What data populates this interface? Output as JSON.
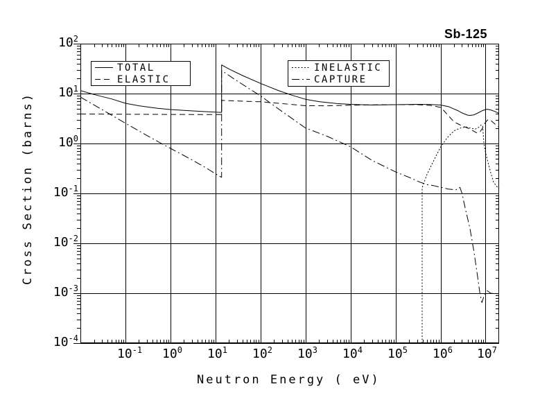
{
  "window": {
    "background": "#ffffff",
    "foreground": "#000000"
  },
  "chart_data": {
    "type": "line",
    "title": "Sb-125",
    "xlabel": "Neutron Energy ( eV)",
    "ylabel": "Cross Section (barns)",
    "x_scale": "log",
    "y_scale": "log",
    "x_range": [
      0.01,
      20000000
    ],
    "y_range": [
      0.0001,
      100
    ],
    "x_tick_exponents": [
      -1,
      0,
      1,
      2,
      3,
      4,
      5,
      6,
      7
    ],
    "y_tick_exponents": [
      2,
      1,
      0,
      -1,
      -2,
      -3,
      -4
    ],
    "grid": true,
    "legend_position": "top-inside",
    "legend_boxes": [
      [
        "total",
        "elastic"
      ],
      [
        "inelastic",
        "capture"
      ]
    ],
    "series": [
      {
        "name": "total",
        "label": "TOTAL",
        "line_style": "solid",
        "points": [
          [
            0.01,
            11.5
          ],
          [
            0.02,
            9.6
          ],
          [
            0.05,
            7.8
          ],
          [
            0.1,
            6.4
          ],
          [
            0.2,
            5.7
          ],
          [
            0.5,
            5.1
          ],
          [
            1,
            4.8
          ],
          [
            2,
            4.6
          ],
          [
            5,
            4.4
          ],
          [
            10,
            4.25
          ],
          [
            13.7,
            4.2
          ],
          [
            13.7,
            37.5
          ],
          [
            20,
            31
          ],
          [
            40,
            23
          ],
          [
            100,
            16
          ],
          [
            250,
            11.5
          ],
          [
            500,
            9.3
          ],
          [
            1000,
            7.7
          ],
          [
            2000,
            6.9
          ],
          [
            5000,
            6.3
          ],
          [
            10000,
            6.1
          ],
          [
            30000,
            5.9
          ],
          [
            100000,
            6.0
          ],
          [
            300000,
            6.1
          ],
          [
            600000,
            6.05
          ],
          [
            1000000,
            5.9
          ],
          [
            1500000,
            5.5
          ],
          [
            2000000,
            4.9
          ],
          [
            2500000,
            4.5
          ],
          [
            3000000,
            4.1
          ],
          [
            4000000,
            3.7
          ],
          [
            4500000,
            3.65
          ],
          [
            5500000,
            3.75
          ],
          [
            7000000,
            4.15
          ],
          [
            8500000,
            4.55
          ],
          [
            10000000,
            4.8
          ],
          [
            11000000,
            4.85
          ],
          [
            13000000,
            4.7
          ],
          [
            16000000,
            4.4
          ],
          [
            20000000,
            4.0
          ]
        ]
      },
      {
        "name": "elastic",
        "label": "ELASTIC",
        "line_style": "dashed",
        "points": [
          [
            0.01,
            3.9
          ],
          [
            0.1,
            3.85
          ],
          [
            1,
            3.82
          ],
          [
            10,
            3.8
          ],
          [
            13.7,
            3.8
          ],
          [
            13.7,
            7.3
          ],
          [
            50,
            7.0
          ],
          [
            100,
            6.85
          ],
          [
            300,
            6.3
          ],
          [
            1000,
            5.72
          ],
          [
            3000,
            5.7
          ],
          [
            10000,
            5.85
          ],
          [
            30000,
            5.95
          ],
          [
            100000,
            6.0
          ],
          [
            300000,
            6.0
          ],
          [
            600000,
            5.8
          ],
          [
            1000000,
            5.3
          ],
          [
            1200000,
            4.5
          ],
          [
            1500000,
            3.6
          ],
          [
            2000000,
            2.7
          ],
          [
            2500000,
            2.45
          ],
          [
            3000000,
            2.25
          ],
          [
            4000000,
            2.05
          ],
          [
            5000000,
            1.85
          ],
          [
            6500000,
            1.62
          ],
          [
            7500000,
            1.7
          ],
          [
            8500000,
            2.0
          ],
          [
            9500000,
            2.5
          ],
          [
            11000000,
            2.95
          ],
          [
            12500000,
            3.0
          ],
          [
            15000000,
            2.6
          ],
          [
            18000000,
            2.25
          ],
          [
            20000000,
            2.15
          ]
        ]
      },
      {
        "name": "inelastic",
        "label": "INELASTIC",
        "line_style": "dotted",
        "points": [
          [
            390000,
            0.0001
          ],
          [
            390000,
            0.13
          ],
          [
            430000,
            0.165
          ],
          [
            500000,
            0.24
          ],
          [
            630000,
            0.37
          ],
          [
            800000,
            0.57
          ],
          [
            1000000,
            0.84
          ],
          [
            1400000,
            1.3
          ],
          [
            2000000,
            1.8
          ],
          [
            2800000,
            2.05
          ],
          [
            3700000,
            2.15
          ],
          [
            5000000,
            2.0
          ],
          [
            6000000,
            1.95
          ],
          [
            7000000,
            2.1
          ],
          [
            8000000,
            2.35
          ],
          [
            8600000,
            2.3
          ],
          [
            9200000,
            1.0
          ],
          [
            10000000,
            0.65
          ],
          [
            11500000,
            0.4
          ],
          [
            13000000,
            0.26
          ],
          [
            15000000,
            0.17
          ],
          [
            17500000,
            0.14
          ],
          [
            20000000,
            0.125
          ]
        ]
      },
      {
        "name": "capture",
        "label": "CAPTURE",
        "line_style": "dash-dot",
        "points": [
          [
            0.01,
            8.5
          ],
          [
            0.03,
            4.8
          ],
          [
            0.1,
            2.55
          ],
          [
            0.3,
            1.45
          ],
          [
            0.63,
            1.0
          ],
          [
            1,
            0.8
          ],
          [
            3,
            0.47
          ],
          [
            6,
            0.33
          ],
          [
            11,
            0.235
          ],
          [
            13.7,
            0.21
          ],
          [
            13.7,
            29
          ],
          [
            30,
            18
          ],
          [
            100,
            9.0
          ],
          [
            300,
            4.4
          ],
          [
            1000,
            2.05
          ],
          [
            3000,
            1.4
          ],
          [
            10000,
            0.86
          ],
          [
            30000,
            0.46
          ],
          [
            100000,
            0.27
          ],
          [
            200000,
            0.21
          ],
          [
            350000,
            0.168
          ],
          [
            500000,
            0.15
          ],
          [
            700000,
            0.143
          ],
          [
            1000000,
            0.133
          ],
          [
            1500000,
            0.122
          ],
          [
            2200000,
            0.118
          ],
          [
            2700000,
            0.132
          ],
          [
            3000000,
            0.1
          ],
          [
            3500000,
            0.053
          ],
          [
            4500000,
            0.02
          ],
          [
            5500000,
            0.007
          ],
          [
            6500000,
            0.0025
          ],
          [
            7500000,
            0.001
          ],
          [
            8300000,
            0.00065
          ],
          [
            9300000,
            0.0009
          ],
          [
            10000000,
            0.00105
          ],
          [
            11000000,
            0.00112
          ],
          [
            13000000,
            0.001
          ],
          [
            16000000,
            0.00098
          ],
          [
            20000000,
            0.00097
          ]
        ]
      }
    ]
  }
}
